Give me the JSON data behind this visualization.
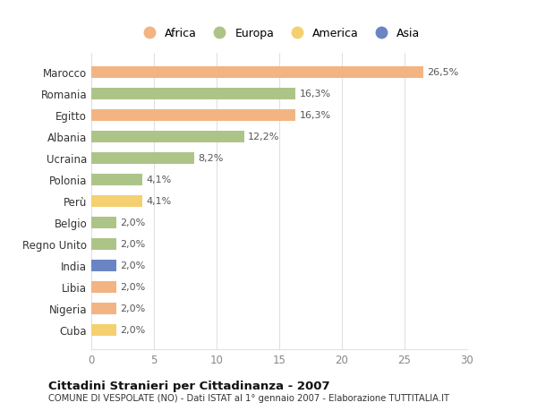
{
  "categories": [
    "Marocco",
    "Romania",
    "Egitto",
    "Albania",
    "Ucraina",
    "Polonia",
    "Perù",
    "Belgio",
    "Regno Unito",
    "India",
    "Libia",
    "Nigeria",
    "Cuba"
  ],
  "values": [
    26.5,
    16.3,
    16.3,
    12.2,
    8.2,
    4.1,
    4.1,
    2.0,
    2.0,
    2.0,
    2.0,
    2.0,
    2.0
  ],
  "labels": [
    "26,5%",
    "16,3%",
    "16,3%",
    "12,2%",
    "8,2%",
    "4,1%",
    "4,1%",
    "2,0%",
    "2,0%",
    "2,0%",
    "2,0%",
    "2,0%",
    "2,0%"
  ],
  "colors": [
    "#f2b482",
    "#adc488",
    "#f2b482",
    "#adc488",
    "#adc488",
    "#adc488",
    "#f5d070",
    "#adc488",
    "#adc488",
    "#6b85c4",
    "#f2b482",
    "#f2b482",
    "#f5d070"
  ],
  "legend_labels": [
    "Africa",
    "Europa",
    "America",
    "Asia"
  ],
  "legend_colors": [
    "#f2b482",
    "#adc488",
    "#f5d070",
    "#6b85c4"
  ],
  "title": "Cittadini Stranieri per Cittadinanza - 2007",
  "subtitle": "COMUNE DI VESPOLATE (NO) - Dati ISTAT al 1° gennaio 2007 - Elaborazione TUTTITALIA.IT",
  "xlim": [
    0,
    30
  ],
  "xticks": [
    0,
    5,
    10,
    15,
    20,
    25,
    30
  ],
  "background_color": "#ffffff",
  "grid_color": "#e0e0e0",
  "bar_height": 0.55
}
